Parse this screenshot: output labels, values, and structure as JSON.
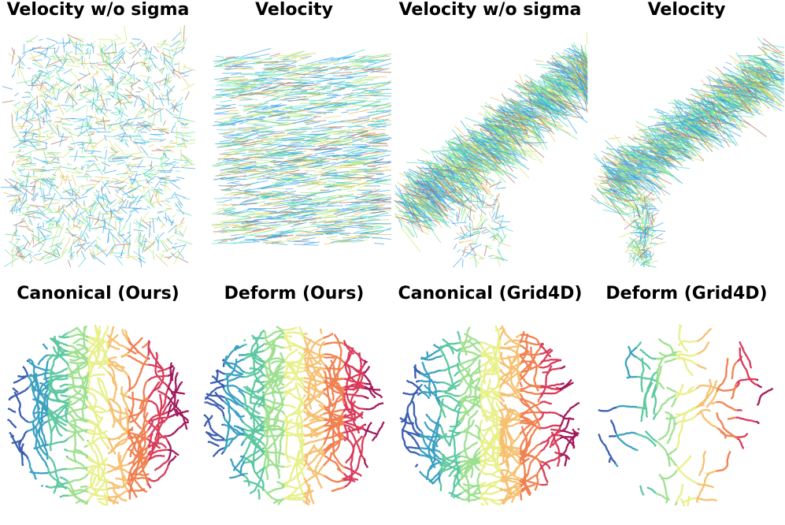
{
  "figure": {
    "rows": [
      {
        "kind": "velocity",
        "panels": [
          {
            "title": "Velocity w/o sigma",
            "field": "diffuse"
          },
          {
            "title": "Velocity",
            "field": "diffuse-aligned"
          },
          {
            "title": "Velocity w/o sigma",
            "field": "plume-low"
          },
          {
            "title": "Velocity",
            "field": "plume-forked"
          }
        ]
      },
      {
        "kind": "scatter",
        "panels": [
          {
            "title": "Canonical (Ours)",
            "coverage": "full",
            "density": "high"
          },
          {
            "title": "Deform (Ours)",
            "coverage": "full",
            "density": "high"
          },
          {
            "title": "Canonical (Grid4D)",
            "coverage": "full",
            "density": "high"
          },
          {
            "title": "Deform (Grid4D)",
            "coverage": "sparse",
            "density": "low"
          }
        ]
      }
    ],
    "colors": {
      "velocity_palette": [
        "#3aa3e8",
        "#4fd8c8",
        "#7ee88a",
        "#c8ea6a",
        "#e8c060",
        "#b07060"
      ],
      "scatter_palette": [
        "#3a5cb0",
        "#3aa0c0",
        "#5cc8a0",
        "#9ee090",
        "#e8f08a",
        "#f6c070",
        "#f08050",
        "#d83a5a",
        "#a0185a"
      ]
    }
  }
}
